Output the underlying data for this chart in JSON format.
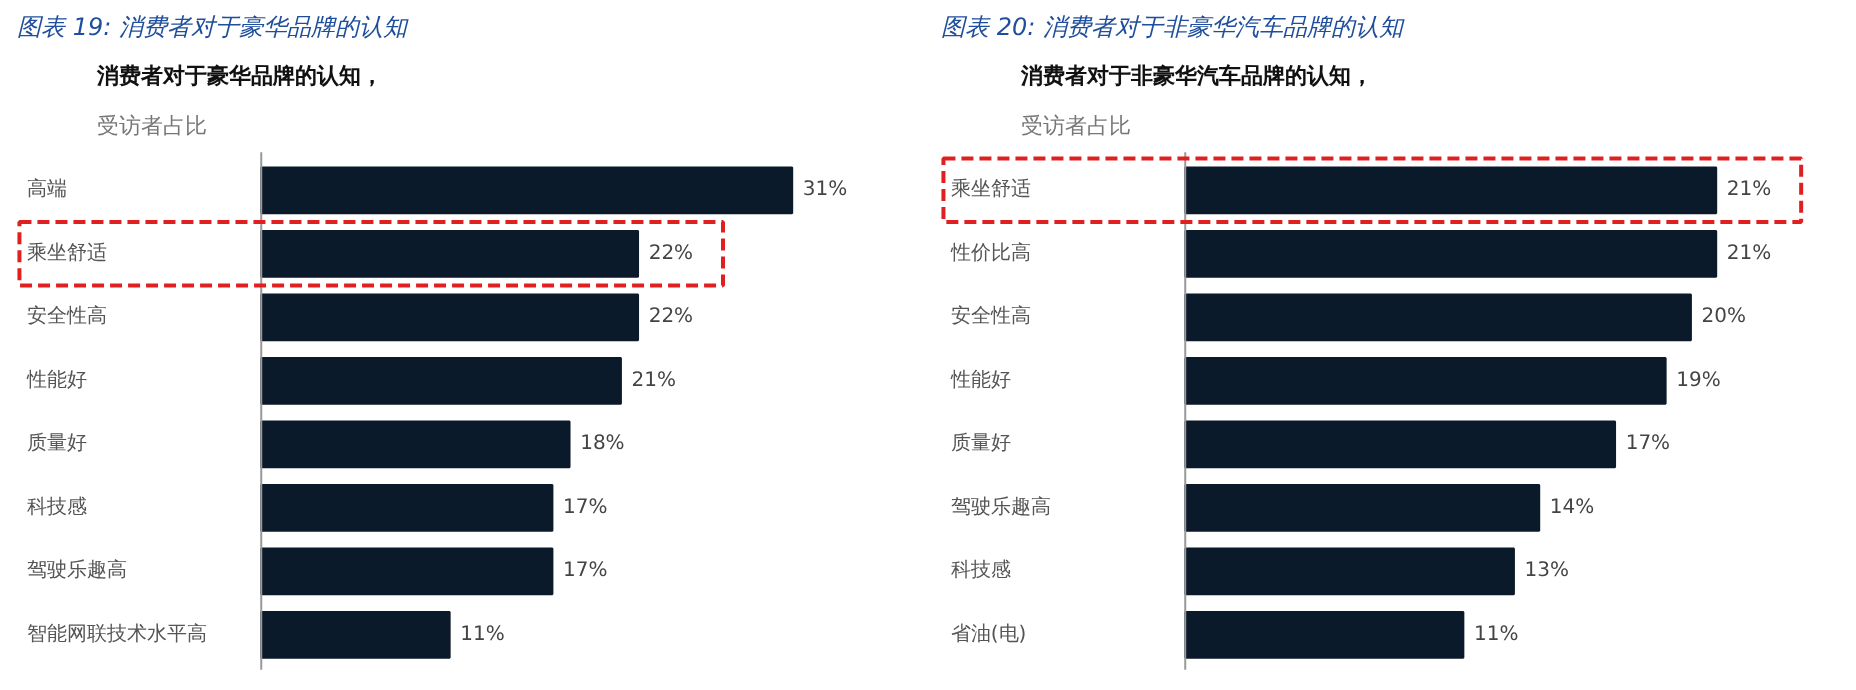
{
  "chart_data": [
    {
      "type": "bar",
      "orientation": "horizontal",
      "title": "图表 19:  消费者对于豪华品牌的认知",
      "subtitle": "消费者对于豪华品牌的认知，",
      "annotations": [
        "受访者占比"
      ],
      "categories": [
        "高端",
        "乘坐舒适",
        "安全性高",
        "性能好",
        "质量好",
        "科技感",
        "驾驶乐趣高",
        "智能网联技术水平高"
      ],
      "values": [
        31,
        22,
        22,
        21,
        18,
        17,
        17,
        11
      ],
      "value_labels": [
        "31%",
        "22%",
        "22%",
        "21%",
        "18%",
        "17%",
        "17%",
        "11%"
      ],
      "color": "#0b1a2a"
    },
    {
      "type": "bar",
      "orientation": "horizontal",
      "title": "图表 20:  消费者对于非豪华汽车品牌的认知",
      "subtitle": "消费者对于非豪华汽车品牌的认知，",
      "annotations": [
        "受访者占比"
      ],
      "categories": [
        "乘坐舒适",
        "性价比高",
        "安全性高",
        "性能好",
        "质量好",
        "驾驶乐趣高",
        "科技感",
        "省油(电)"
      ],
      "values": [
        21,
        21,
        20,
        19,
        17,
        14,
        13,
        11
      ],
      "value_labels": [
        "21%",
        "21%",
        "20%",
        "19%",
        "17%",
        "14%",
        "13%",
        "11%"
      ],
      "color": "#0b1a2a"
    }
  ]
}
